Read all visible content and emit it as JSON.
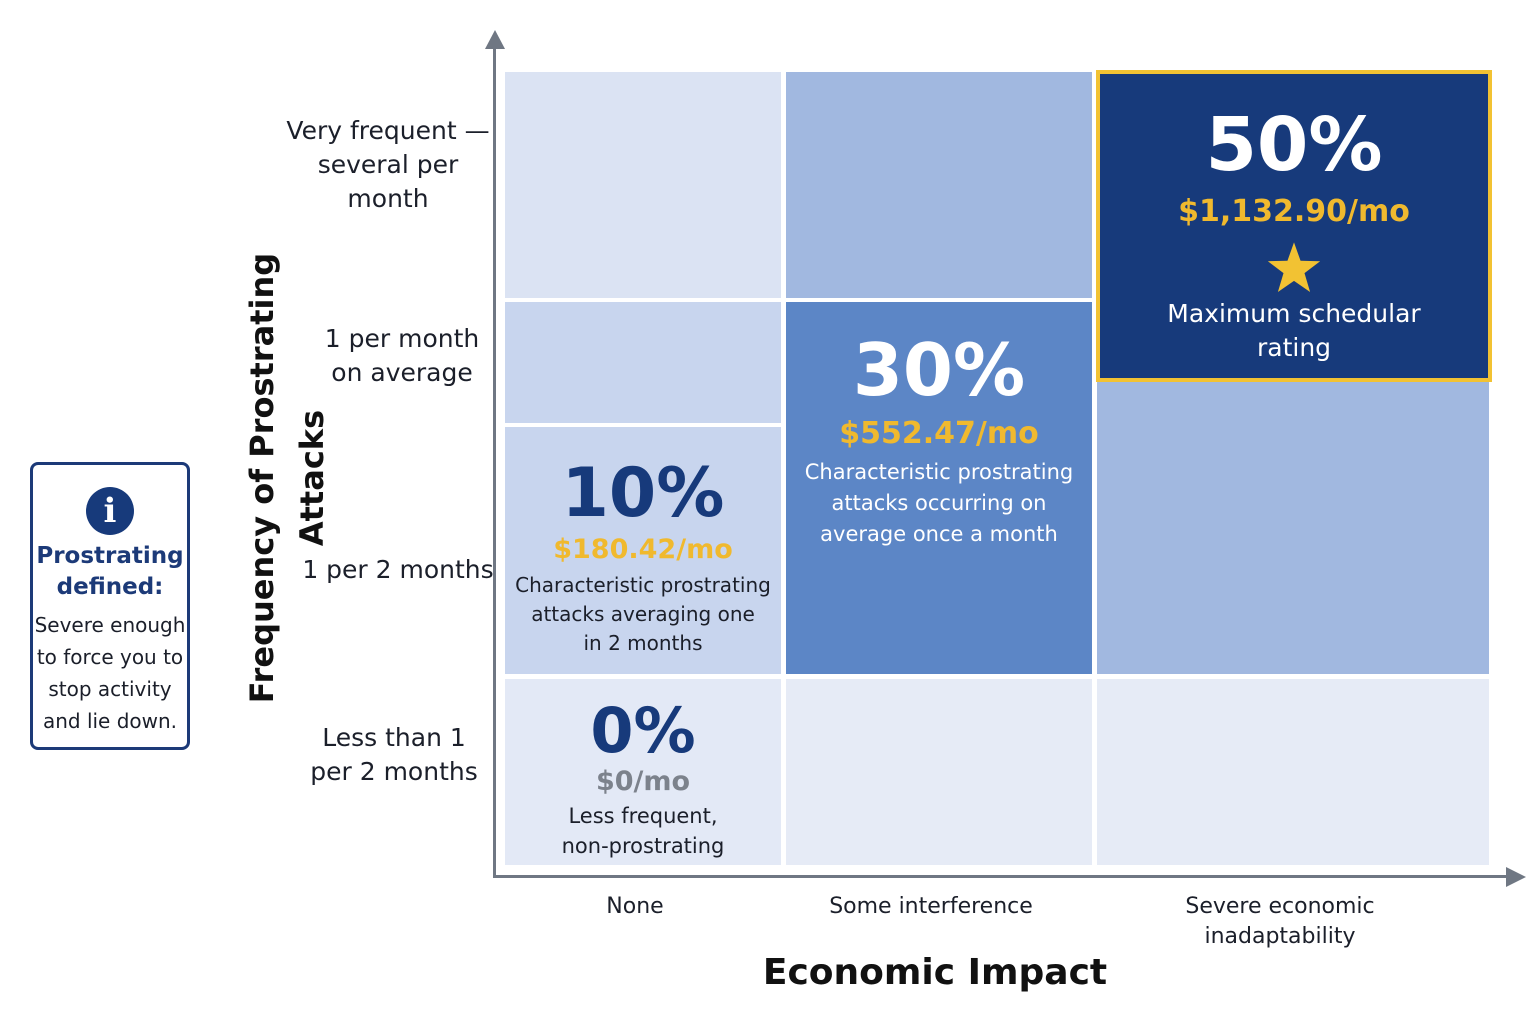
{
  "info_box": {
    "icon": "info-icon",
    "title_line1": "Prostrating",
    "title_line2": "defined:",
    "body_lines": [
      "Severe enough",
      "to force you to",
      "stop activity",
      "and lie down."
    ]
  },
  "y_axis": {
    "title": "Frequency of Prostrating Attacks",
    "rows": [
      {
        "line1": "Very frequent —",
        "line2": "several per month"
      },
      {
        "line1": "1 per month",
        "line2": "on average"
      },
      {
        "line1": "1 per 2 months",
        "line2": ""
      },
      {
        "line1": "Less than 1",
        "line2": "per 2 months"
      }
    ]
  },
  "x_axis": {
    "title": "Economic Impact",
    "columns": [
      {
        "line1": "None",
        "line2": ""
      },
      {
        "line1": "Some interference",
        "line2": ""
      },
      {
        "line1": "Severe economic",
        "line2": "inadaptability"
      }
    ]
  },
  "ratings": {
    "r50": {
      "percent": "50%",
      "amount": "$1,132.90/mo",
      "icon": "star-icon",
      "desc_line1": "Maximum schedular",
      "desc_line2": "rating"
    },
    "r30": {
      "percent": "30%",
      "amount": "$552.47/mo",
      "desc_line1": "Characteristic prostrating",
      "desc_line2": "attacks occurring on",
      "desc_line3": "average once a month"
    },
    "r10": {
      "percent": "10%",
      "amount": "$180.42/mo",
      "desc_line1": "Characteristic prostrating",
      "desc_line2": "attacks averaging one",
      "desc_line3": "in 2 months"
    },
    "r0": {
      "percent": "0%",
      "amount": "$0/mo",
      "desc_line1": "Less frequent,",
      "desc_line2": "non-prostrating"
    }
  },
  "colors": {
    "navy": "#173a7b",
    "gold": "#f0b92e",
    "highlight_border": "#f2c233",
    "strong_blue": "#5c86c6",
    "mid_blue": "#a1b8e0",
    "light_blue": "#dbe3f3"
  }
}
